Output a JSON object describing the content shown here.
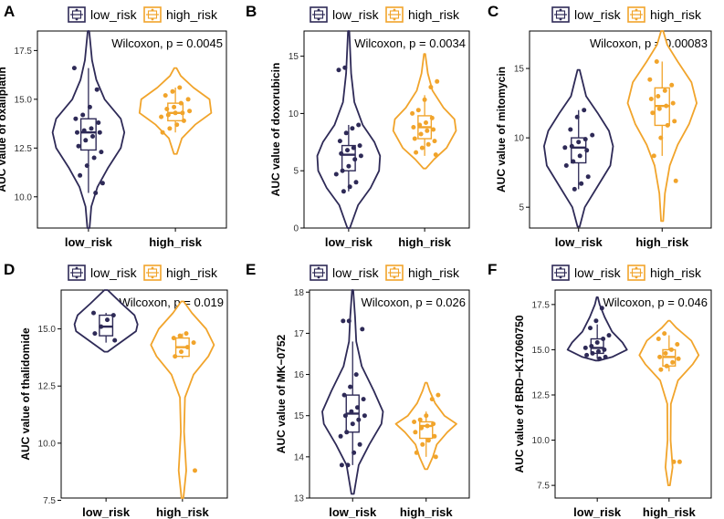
{
  "colors": {
    "low": "#2e2a57",
    "high": "#f1a42b"
  },
  "chart_data": [
    {
      "label": "A",
      "type": "violin",
      "title": "",
      "ylabel": "AUC value of oxaliplatin",
      "xlabel": "",
      "categories": [
        "low_risk",
        "high_risk"
      ],
      "legend": [
        "low_risk",
        "high_risk"
      ],
      "annotation": "Wilcoxon, p = 0.0045",
      "ylim": [
        8.4,
        18.5
      ],
      "yticks": [
        10.0,
        12.5,
        15.0,
        17.5
      ],
      "yticklabels": [
        "10.0",
        "12.5",
        "15.0",
        "17.5"
      ],
      "groups": [
        {
          "name": "low_risk",
          "range": [
            8.4,
            18.5
          ],
          "box": {
            "q1": 12.4,
            "median": 13.3,
            "q3": 14.0,
            "whisker_low": 10.2,
            "whisker_high": 16.6
          },
          "density": [
            [
              8.4,
              0.03
            ],
            [
              9.5,
              0.08
            ],
            [
              10.5,
              0.25
            ],
            [
              11.5,
              0.55
            ],
            [
              12.5,
              0.9
            ],
            [
              13.3,
              1.0
            ],
            [
              14.0,
              0.9
            ],
            [
              15.0,
              0.45
            ],
            [
              16.0,
              0.22
            ],
            [
              17.0,
              0.1
            ],
            [
              18.5,
              0.02
            ]
          ],
          "points": [
            16.6,
            15.5,
            14.6,
            14.2,
            14.0,
            13.8,
            13.5,
            13.4,
            13.3,
            13.3,
            13.1,
            12.9,
            12.6,
            12.3,
            12.0,
            11.6,
            11.1,
            10.7,
            10.2
          ]
        },
        {
          "name": "high_risk",
          "range": [
            12.2,
            16.6
          ],
          "box": {
            "q1": 13.9,
            "median": 14.3,
            "q3": 14.8,
            "whisker_low": 13.3,
            "whisker_high": 15.6
          },
          "density": [
            [
              12.2,
              0.04
            ],
            [
              13.0,
              0.18
            ],
            [
              13.7,
              0.55
            ],
            [
              14.3,
              1.0
            ],
            [
              15.0,
              0.95
            ],
            [
              15.6,
              0.5
            ],
            [
              16.2,
              0.15
            ],
            [
              16.6,
              0.03
            ]
          ],
          "points": [
            15.6,
            15.4,
            15.2,
            15.0,
            14.8,
            14.6,
            14.5,
            14.4,
            14.3,
            14.3,
            14.2,
            14.1,
            13.9,
            13.7,
            13.5,
            13.3
          ]
        }
      ]
    },
    {
      "label": "B",
      "type": "violin",
      "title": "",
      "ylabel": "AUC value of doxorubicin",
      "xlabel": "",
      "categories": [
        "low_risk",
        "high_risk"
      ],
      "legend": [
        "low_risk",
        "high_risk"
      ],
      "annotation": "Wilcoxon, p = 0.0034",
      "ylim": [
        0,
        17.2
      ],
      "yticks": [
        0,
        5,
        10,
        15
      ],
      "yticklabels": [
        "0",
        "5",
        "10",
        "15"
      ],
      "groups": [
        {
          "name": "low_risk",
          "range": [
            0,
            17.2
          ],
          "box": {
            "q1": 5.0,
            "median": 6.4,
            "q3": 7.2,
            "whisker_low": 3.2,
            "whisker_high": 9.0
          },
          "density": [
            [
              0,
              0.04
            ],
            [
              2.0,
              0.3
            ],
            [
              3.5,
              0.7
            ],
            [
              5.0,
              0.97
            ],
            [
              6.3,
              1.0
            ],
            [
              7.5,
              0.82
            ],
            [
              9.0,
              0.45
            ],
            [
              11.0,
              0.18
            ],
            [
              13.5,
              0.08
            ],
            [
              17.2,
              0.02
            ]
          ],
          "points": [
            14.0,
            13.8,
            9.0,
            8.7,
            8.3,
            7.6,
            7.2,
            7.0,
            6.8,
            6.5,
            6.3,
            6.0,
            5.4,
            5.0,
            4.7,
            4.0,
            3.6,
            3.2
          ]
        },
        {
          "name": "high_risk",
          "range": [
            5.2,
            15.2
          ],
          "box": {
            "q1": 7.8,
            "median": 8.8,
            "q3": 9.8,
            "whisker_low": 6.3,
            "whisker_high": 11.6
          },
          "density": [
            [
              5.2,
              0.04
            ],
            [
              6.0,
              0.3
            ],
            [
              7.0,
              0.7
            ],
            [
              8.5,
              1.0
            ],
            [
              9.5,
              0.95
            ],
            [
              10.5,
              0.6
            ],
            [
              12.0,
              0.25
            ],
            [
              13.5,
              0.1
            ],
            [
              15.2,
              0.02
            ]
          ],
          "points": [
            12.8,
            12.3,
            11.2,
            10.3,
            10.0,
            9.6,
            9.2,
            9.0,
            8.8,
            8.6,
            8.5,
            8.2,
            7.8,
            7.6,
            7.3,
            7.0,
            6.6,
            6.4
          ]
        }
      ]
    },
    {
      "label": "C",
      "type": "violin",
      "title": "",
      "ylabel": "AUC value of mitomycin",
      "xlabel": "",
      "categories": [
        "low_risk",
        "high_risk"
      ],
      "legend": [
        "low_risk",
        "high_risk"
      ],
      "annotation": "Wilcoxon, p = 0.00083",
      "ylim": [
        3.5,
        17.7
      ],
      "yticks": [
        5,
        10,
        15
      ],
      "yticklabels": [
        "5",
        "10",
        "15"
      ],
      "groups": [
        {
          "name": "low_risk",
          "range": [
            3.6,
            14.9
          ],
          "box": {
            "q1": 8.2,
            "median": 9.3,
            "q3": 10.0,
            "whisker_low": 6.3,
            "whisker_high": 12.0
          },
          "density": [
            [
              3.6,
              0.03
            ],
            [
              5.0,
              0.18
            ],
            [
              6.5,
              0.55
            ],
            [
              8.0,
              0.92
            ],
            [
              9.4,
              1.0
            ],
            [
              10.5,
              0.88
            ],
            [
              11.8,
              0.55
            ],
            [
              13.0,
              0.22
            ],
            [
              14.9,
              0.03
            ]
          ],
          "points": [
            12.0,
            11.5,
            10.6,
            10.2,
            9.9,
            9.7,
            9.4,
            9.3,
            9.1,
            8.7,
            8.3,
            8.0,
            7.2,
            6.7,
            6.3
          ]
        },
        {
          "name": "high_risk",
          "range": [
            4.0,
            17.7
          ],
          "box": {
            "q1": 10.9,
            "median": 12.3,
            "q3": 13.6,
            "whisker_low": 8.7,
            "whisker_high": 15.5
          },
          "density": [
            [
              4.0,
              0.03
            ],
            [
              6.0,
              0.08
            ],
            [
              8.0,
              0.22
            ],
            [
              9.5,
              0.45
            ],
            [
              11.0,
              0.78
            ],
            [
              12.5,
              1.0
            ],
            [
              14.0,
              0.85
            ],
            [
              15.5,
              0.45
            ],
            [
              16.7,
              0.15
            ],
            [
              17.7,
              0.03
            ]
          ],
          "points": [
            15.5,
            14.2,
            13.8,
            13.4,
            13.0,
            12.8,
            12.5,
            12.3,
            12.1,
            11.8,
            11.2,
            10.9,
            10.0,
            8.7,
            6.9
          ]
        }
      ]
    },
    {
      "label": "D",
      "type": "violin",
      "title": "",
      "ylabel": "AUC value of thalidomide",
      "xlabel": "",
      "categories": [
        "low_risk",
        "high_risk"
      ],
      "legend": [
        "low_risk",
        "high_risk"
      ],
      "annotation": "Wilcoxon, p = 0.019",
      "ylim": [
        7.6,
        16.7
      ],
      "yticks": [
        7.5,
        10.0,
        12.5,
        15.0
      ],
      "yticklabels": [
        "7.5",
        "10.0",
        "12.5",
        "15.0"
      ],
      "groups": [
        {
          "name": "low_risk",
          "range": [
            14.0,
            16.7
          ],
          "box": {
            "q1": 14.7,
            "median": 15.1,
            "q3": 15.6,
            "whisker_low": 14.4,
            "whisker_high": 15.7
          },
          "density": [
            [
              14.0,
              0.05
            ],
            [
              14.4,
              0.45
            ],
            [
              14.9,
              0.95
            ],
            [
              15.2,
              1.0
            ],
            [
              15.6,
              0.9
            ],
            [
              16.1,
              0.5
            ],
            [
              16.7,
              0.05
            ]
          ],
          "points": [
            15.7,
            15.6,
            15.4,
            15.1,
            14.8,
            14.5
          ]
        },
        {
          "name": "high_risk",
          "range": [
            7.6,
            16.2
          ],
          "box": {
            "q1": 13.8,
            "median": 14.2,
            "q3": 14.6,
            "whisker_low": 13.7,
            "whisker_high": 14.8
          },
          "density": [
            [
              7.6,
              0.03
            ],
            [
              8.8,
              0.12
            ],
            [
              10.5,
              0.05
            ],
            [
              12.0,
              0.08
            ],
            [
              13.0,
              0.35
            ],
            [
              13.8,
              0.82
            ],
            [
              14.3,
              1.0
            ],
            [
              15.0,
              0.75
            ],
            [
              15.7,
              0.3
            ],
            [
              16.2,
              0.04
            ]
          ],
          "points": [
            14.8,
            14.7,
            14.6,
            14.4,
            14.2,
            14.0,
            13.8,
            8.8
          ]
        }
      ]
    },
    {
      "label": "E",
      "type": "violin",
      "title": "",
      "ylabel": "AUC value of MK−0752",
      "xlabel": "",
      "categories": [
        "low_risk",
        "high_risk"
      ],
      "legend": [
        "low_risk",
        "high_risk"
      ],
      "annotation": "Wilcoxon, p = 0.026",
      "ylim": [
        13.0,
        18.05
      ],
      "yticks": [
        13,
        14,
        15,
        16,
        17,
        18
      ],
      "yticklabels": [
        "13",
        "14",
        "15",
        "16",
        "17",
        "18"
      ],
      "groups": [
        {
          "name": "low_risk",
          "range": [
            13.1,
            18.05
          ],
          "box": {
            "q1": 14.6,
            "median": 15.05,
            "q3": 15.5,
            "whisker_low": 13.8,
            "whisker_high": 16.8
          },
          "density": [
            [
              13.1,
              0.04
            ],
            [
              13.8,
              0.2
            ],
            [
              14.3,
              0.55
            ],
            [
              14.8,
              0.95
            ],
            [
              15.1,
              1.0
            ],
            [
              15.6,
              0.7
            ],
            [
              16.2,
              0.3
            ],
            [
              16.8,
              0.12
            ],
            [
              17.4,
              0.08
            ],
            [
              18.05,
              0.02
            ]
          ],
          "points": [
            17.3,
            17.3,
            17.1,
            16.0,
            15.7,
            15.5,
            15.4,
            15.2,
            15.1,
            15.0,
            15.0,
            14.9,
            14.8,
            14.6,
            14.5,
            14.3,
            14.1,
            13.8,
            13.8
          ]
        },
        {
          "name": "high_risk",
          "range": [
            13.7,
            15.8
          ],
          "box": {
            "q1": 14.45,
            "median": 14.75,
            "q3": 14.85,
            "whisker_low": 14.0,
            "whisker_high": 15.1
          },
          "density": [
            [
              13.7,
              0.04
            ],
            [
              14.0,
              0.22
            ],
            [
              14.3,
              0.35
            ],
            [
              14.6,
              0.7
            ],
            [
              14.8,
              1.0
            ],
            [
              15.0,
              0.6
            ],
            [
              15.3,
              0.3
            ],
            [
              15.6,
              0.12
            ],
            [
              15.8,
              0.03
            ]
          ],
          "points": [
            15.5,
            15.4,
            15.0,
            14.9,
            14.85,
            14.8,
            14.75,
            14.7,
            14.6,
            14.5,
            14.4,
            14.3,
            14.1,
            14.0
          ]
        }
      ]
    },
    {
      "label": "F",
      "type": "violin",
      "title": "",
      "ylabel": "AUC value of BRD−K17060750",
      "xlabel": "",
      "categories": [
        "low_risk",
        "high_risk"
      ],
      "legend": [
        "low_risk",
        "high_risk"
      ],
      "annotation": "Wilcoxon, p = 0.046",
      "ylim": [
        6.8,
        18.3
      ],
      "yticks": [
        7.5,
        10.0,
        12.5,
        15.0,
        17.5
      ],
      "yticklabels": [
        "7.5",
        "10.0",
        "12.5",
        "15.0",
        "17.5"
      ],
      "groups": [
        {
          "name": "low_risk",
          "range": [
            14.4,
            17.9
          ],
          "box": {
            "q1": 14.8,
            "median": 15.1,
            "q3": 15.6,
            "whisker_low": 14.5,
            "whisker_high": 16.4
          },
          "density": [
            [
              14.4,
              0.06
            ],
            [
              14.6,
              0.5
            ],
            [
              15.0,
              1.0
            ],
            [
              15.4,
              0.85
            ],
            [
              16.0,
              0.5
            ],
            [
              16.8,
              0.25
            ],
            [
              17.5,
              0.08
            ],
            [
              17.9,
              0.02
            ]
          ],
          "points": [
            17.3,
            16.6,
            16.2,
            15.8,
            15.6,
            15.4,
            15.2,
            15.1,
            15.0,
            14.9,
            14.8,
            14.7,
            14.6,
            14.5
          ]
        },
        {
          "name": "high_risk",
          "range": [
            7.5,
            16.6
          ],
          "box": {
            "q1": 14.1,
            "median": 14.6,
            "q3": 15.0,
            "whisker_low": 13.8,
            "whisker_high": 15.8
          },
          "density": [
            [
              7.5,
              0.03
            ],
            [
              8.5,
              0.12
            ],
            [
              10.0,
              0.05
            ],
            [
              12.0,
              0.06
            ],
            [
              13.3,
              0.3
            ],
            [
              14.2,
              0.8
            ],
            [
              14.7,
              1.0
            ],
            [
              15.5,
              0.75
            ],
            [
              16.2,
              0.25
            ],
            [
              16.6,
              0.03
            ]
          ],
          "points": [
            15.9,
            15.6,
            15.3,
            15.0,
            14.8,
            14.6,
            14.5,
            14.3,
            14.1,
            13.9,
            8.8,
            8.8
          ]
        }
      ]
    }
  ]
}
